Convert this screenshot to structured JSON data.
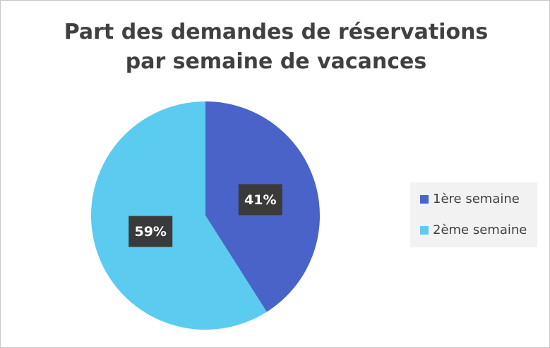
{
  "chart_data": {
    "type": "pie",
    "title": "Part des demandes de réservations par semaine de vacances",
    "categories": [
      "1ère semaine",
      "2ème semaine"
    ],
    "values": [
      41,
      59
    ],
    "value_labels": [
      "41%",
      "59%"
    ],
    "colors": [
      "#4a63c8",
      "#5ccbf0"
    ],
    "legend": "right"
  }
}
